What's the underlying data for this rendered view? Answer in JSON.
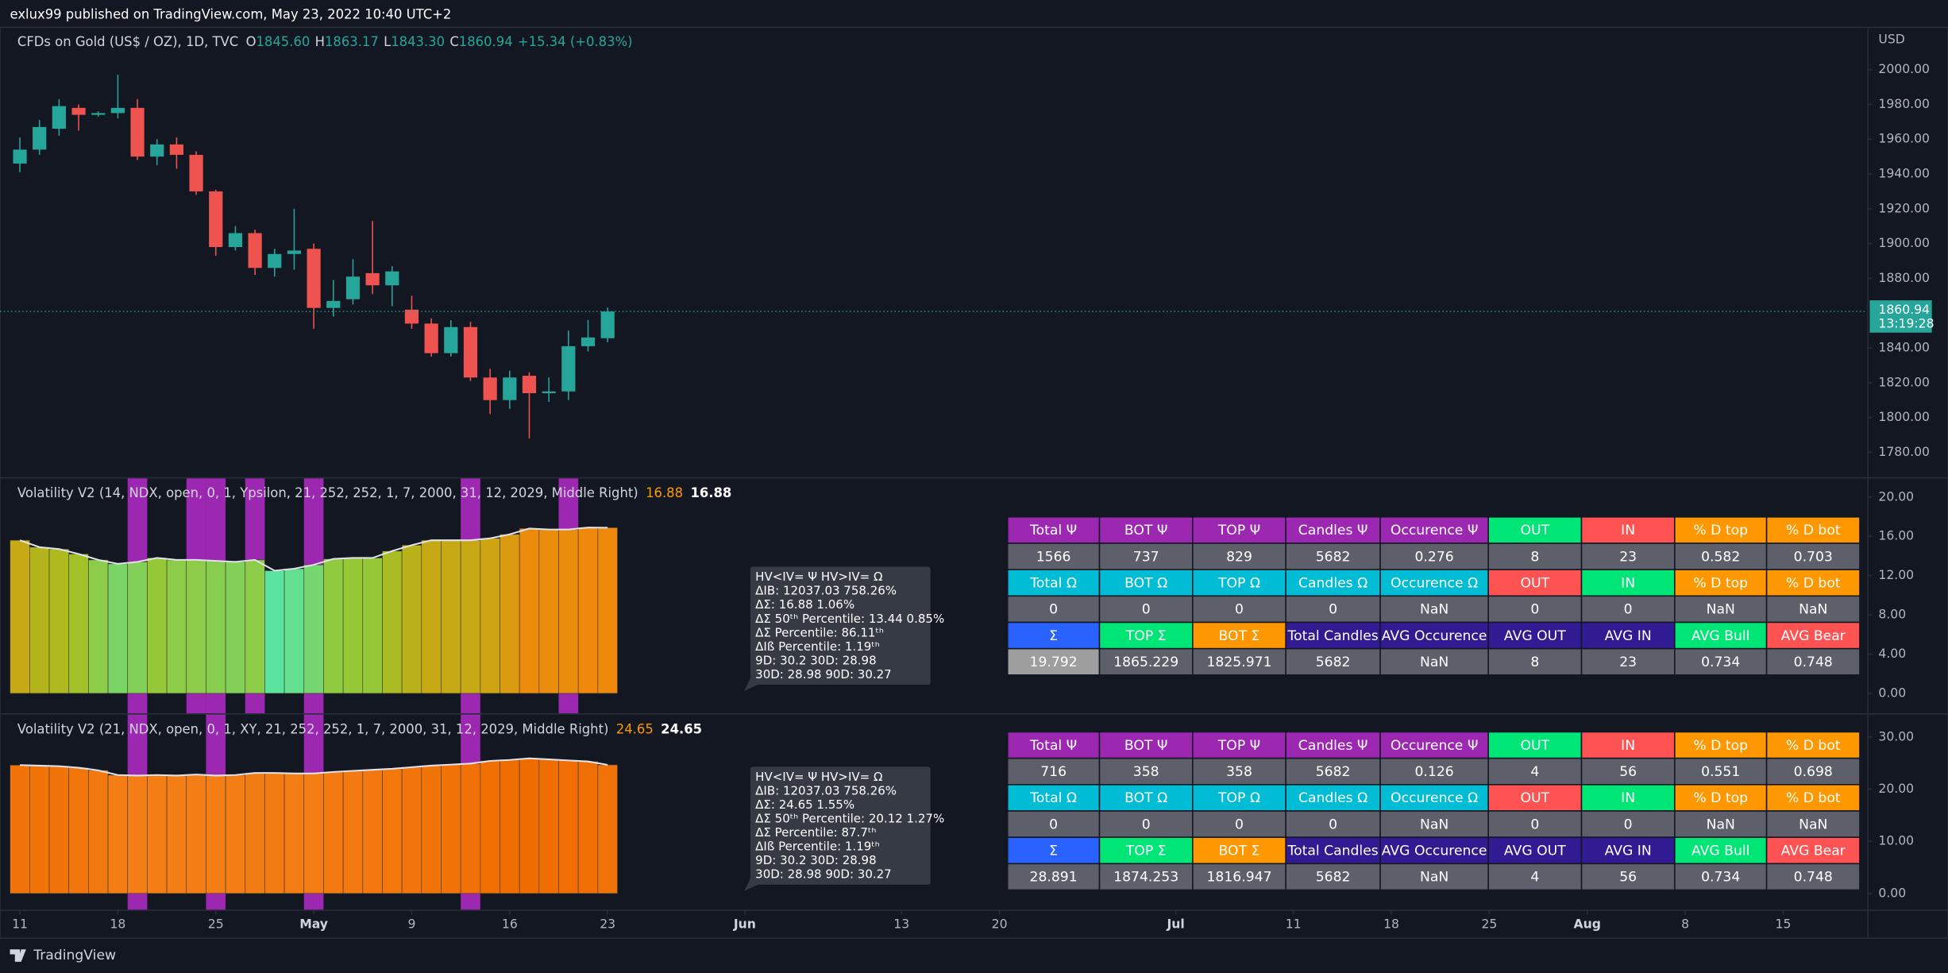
{
  "header": {
    "publisher": "exlux99 published on TradingView.com, May 23, 2022 10:40 UTC+2"
  },
  "chart_data": [
    {
      "type": "candlestick",
      "title": "CFDs on Gold (US$ / OZ), 1D, TVC",
      "legend": [
        {
          "key": "O",
          "label": "1845.60"
        },
        {
          "key": "H",
          "label": "1863.17"
        },
        {
          "key": "L",
          "label": "1843.30"
        },
        {
          "key": "C",
          "label": "1860.94"
        }
      ],
      "change": "+15.34 (+0.83%)",
      "currency": "USD",
      "countdown": "13:19:28",
      "up_color": "#26a69a",
      "down_color": "#ef5350",
      "open": [
        1946,
        1954,
        1966,
        1978,
        1974,
        1975,
        1978,
        1950,
        1957,
        1951,
        1930,
        1898,
        1906,
        1886,
        1894,
        1897,
        1863,
        1868,
        1883,
        1876,
        1862,
        1854,
        1837,
        1852,
        1823,
        1810,
        1824,
        1814,
        1815,
        1841,
        1845.6
      ],
      "high": [
        1961,
        1971,
        1983,
        1980,
        1976,
        1997,
        1983,
        1960,
        1961,
        1953,
        1931,
        1910,
        1908,
        1897,
        1920,
        1900,
        1879,
        1891,
        1913,
        1887,
        1870,
        1857,
        1856,
        1855,
        1828,
        1827,
        1826,
        1823,
        1850,
        1856,
        1863.17
      ],
      "low": [
        1941,
        1951,
        1962,
        1965,
        1973,
        1972,
        1948,
        1945,
        1943,
        1928,
        1893,
        1896,
        1882,
        1881,
        1885,
        1851,
        1858,
        1865,
        1871,
        1864,
        1851,
        1835,
        1835,
        1821,
        1802,
        1805,
        1788,
        1809,
        1810,
        1838,
        1843.3
      ],
      "close": [
        1954,
        1967,
        1979,
        1974,
        1975,
        1978,
        1950,
        1957,
        1951,
        1930,
        1898,
        1906,
        1886,
        1894,
        1896,
        1863,
        1867,
        1881,
        1876,
        1884,
        1854,
        1837,
        1852,
        1823,
        1810,
        1823,
        1814,
        1815,
        1841,
        1846,
        1860.94
      ],
      "xlim": [
        -1.0146,
        94.29
      ],
      "xticks": [
        {
          "value": 0,
          "label": "11"
        },
        {
          "value": 5,
          "label": "18"
        },
        {
          "value": 10,
          "label": "25"
        },
        {
          "value": 15,
          "label": "May"
        },
        {
          "value": 20,
          "label": "9"
        },
        {
          "value": 25,
          "label": "16"
        },
        {
          "value": 30,
          "label": "23"
        },
        {
          "value": 37,
          "label": "Jun"
        },
        {
          "value": 45,
          "label": "13"
        },
        {
          "value": 50,
          "label": "20"
        },
        {
          "value": 59,
          "label": "Jul"
        },
        {
          "value": 65,
          "label": "11"
        },
        {
          "value": 70,
          "label": "18"
        },
        {
          "value": 75,
          "label": "25"
        },
        {
          "value": 80,
          "label": "Aug"
        },
        {
          "value": 85,
          "label": "8"
        },
        {
          "value": 90,
          "label": "15"
        }
      ],
      "ylim": [
        1765.7,
        2024.3
      ],
      "yticks": [
        {
          "value": 2000,
          "label": "2000.00"
        },
        {
          "value": 1980,
          "label": "1980.00"
        },
        {
          "value": 1960,
          "label": "1960.00"
        },
        {
          "value": 1940,
          "label": "1940.00"
        },
        {
          "value": 1920,
          "label": "1920.00"
        },
        {
          "value": 1900,
          "label": "1900.00"
        },
        {
          "value": 1880,
          "label": "1880.00"
        },
        {
          "value": 1840,
          "label": "1840.00"
        },
        {
          "value": 1820,
          "label": "1820.00"
        },
        {
          "value": 1800,
          "label": "1800.00"
        },
        {
          "value": 1780,
          "label": "1780.00"
        }
      ]
    },
    {
      "type": "bar",
      "title": "Volatility V2 (14, NDX, open, 0, 1, Ypsilon, 21, 252, 252, 1, 7, 2000, 31, 12, 2029, Middle Right)",
      "values": [
        15.6,
        14.9,
        14.7,
        14.2,
        13.6,
        13.2,
        13.4,
        13.8,
        13.6,
        13.6,
        13.5,
        13.4,
        13.6,
        12.5,
        12.7,
        13.1,
        13.7,
        13.8,
        13.8,
        14.5,
        15.1,
        15.6,
        15.6,
        15.6,
        15.8,
        16.2,
        16.8,
        16.7,
        16.7,
        16.9,
        16.88
      ],
      "colors": [
        "#5be3a0",
        "#9cc42a",
        "#c2ad16",
        "#f0880c"
      ],
      "highlight": [
        6,
        9,
        10,
        12,
        15,
        23,
        28
      ],
      "highlight_color": "#9c27b0",
      "ylim": [
        -2.03,
        21.9
      ],
      "yticks": [
        {
          "value": 20,
          "label": "20.00"
        },
        {
          "value": 16,
          "label": "16.00"
        },
        {
          "value": 12,
          "label": "12.00"
        },
        {
          "value": 8,
          "label": "8.00"
        },
        {
          "value": 4,
          "label": "4.00"
        },
        {
          "value": 0,
          "label": "0.00"
        }
      ]
    },
    {
      "type": "bar",
      "title": "Volatility V2 (21, NDX, open, 0, 1, XY, 21, 252, 252, 1, 7, 2000, 31, 12, 2029, Middle Right)",
      "values": [
        24.6,
        24.5,
        24.4,
        24.1,
        23.6,
        22.7,
        22.6,
        22.7,
        22.6,
        22.8,
        22.6,
        22.7,
        23.1,
        23.1,
        23.0,
        23.0,
        23.3,
        23.5,
        23.7,
        23.9,
        24.2,
        24.5,
        24.7,
        24.9,
        25.4,
        25.6,
        25.9,
        25.7,
        25.5,
        25.3,
        24.65
      ],
      "colors": [
        "#f47e16",
        "#ef6c00"
      ],
      "highlight": [
        6,
        10,
        15,
        23
      ],
      "highlight_color": "#9c27b0",
      "ylim": [
        -3.1,
        34.3
      ],
      "yticks": [
        {
          "value": 30,
          "label": "30.00"
        },
        {
          "value": 20,
          "label": "20.00"
        },
        {
          "value": 10,
          "label": "10.00"
        },
        {
          "value": 0,
          "label": "0.00"
        }
      ]
    }
  ],
  "tables": [
    {
      "rows": [
        [
          "Total Ψ",
          "BOT Ψ",
          "TOP Ψ",
          "Candles Ψ",
          "Occurence Ψ",
          "OUT",
          "IN",
          "% D top",
          "% D bot"
        ],
        [
          "1566",
          "737",
          "829",
          "5682",
          "0.276",
          "8",
          "23",
          "0.582",
          "0.703"
        ],
        [
          "Total Ω",
          "BOT Ω",
          "TOP Ω",
          "Candles Ω",
          "Occurence Ω",
          "OUT",
          "IN",
          "% D top",
          "% D bot"
        ],
        [
          "0",
          "0",
          "0",
          "0",
          "NaN",
          "0",
          "0",
          "NaN",
          "NaN"
        ],
        [
          "Σ",
          "TOP Σ",
          "BOT Σ",
          "Total Candles",
          "AVG Occurence",
          "AVG OUT",
          "AVG IN",
          "AVG Bull",
          "AVG Bear"
        ],
        [
          "19.792",
          "1865.229",
          "1825.971",
          "5682",
          "NaN",
          "8",
          "23",
          "0.734",
          "0.748"
        ]
      ]
    },
    {
      "rows": [
        [
          "Total Ψ",
          "BOT Ψ",
          "TOP Ψ",
          "Candles Ψ",
          "Occurence Ψ",
          "OUT",
          "IN",
          "% D top",
          "% D bot"
        ],
        [
          "716",
          "358",
          "358",
          "5682",
          "0.126",
          "4",
          "56",
          "0.551",
          "0.698"
        ],
        [
          "Total Ω",
          "BOT Ω",
          "TOP Ω",
          "Candles Ω",
          "Occurence Ω",
          "OUT",
          "IN",
          "% D top",
          "% D bot"
        ],
        [
          "0",
          "0",
          "0",
          "0",
          "NaN",
          "0",
          "0",
          "NaN",
          "NaN"
        ],
        [
          "Σ",
          "TOP Σ",
          "BOT Σ",
          "Total Candles",
          "AVG Occurence",
          "AVG OUT",
          "AVG IN",
          "AVG Bull",
          "AVG Bear"
        ],
        [
          "28.891",
          "1874.253",
          "1816.947",
          "5682",
          "NaN",
          "4",
          "56",
          "0.734",
          "0.748"
        ]
      ]
    }
  ],
  "tooltips": [
    {
      "lines": [
        "HV<IV= Ψ  HV>IV= Ω",
        "ΔIB: 12037.03  758.26%",
        "ΔΣ: 16.88  1.06%",
        "ΔΣ 50ᵗʰ Percentile: 13.44  0.85%",
        "ΔΣ Percentile: 86.11ᵗʰ",
        "ΔIß Percentile: 1.19ᵗʰ",
        "9D: 30.2  30D: 28.98",
        "30D: 28.98  90D: 30.27"
      ]
    },
    {
      "lines": [
        "HV<IV= Ψ  HV>IV= Ω",
        "ΔIB: 12037.03  758.26%",
        "ΔΣ: 24.65  1.55%",
        "ΔΣ 50ᵗʰ Percentile: 20.12  1.27%",
        "ΔΣ Percentile: 87.7ᵗʰ",
        "ΔIß Percentile: 1.19ᵗʰ",
        "9D: 30.2  30D: 28.98",
        "30D: 28.98  90D: 30.27"
      ]
    }
  ],
  "footer": {
    "brand": "TradingView"
  }
}
